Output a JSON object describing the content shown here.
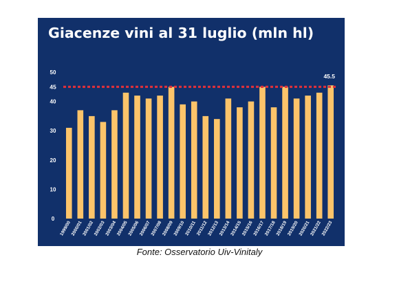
{
  "chart_data": {
    "type": "bar",
    "title": "Giacenze vini al 31 luglio (mln hl)",
    "categories": [
      "1999/00",
      "2000/01",
      "2001/02",
      "2002/03",
      "2003/04",
      "2004/05",
      "2005/06",
      "2006/07",
      "2007/08",
      "2008/09",
      "2009/10",
      "2010/11",
      "2011/12",
      "2012/13",
      "2013/14",
      "2014/15",
      "2015/16",
      "2016/17",
      "2017/18",
      "2018/19",
      "2019/20",
      "2020/21",
      "2021/22",
      "2022/23"
    ],
    "values": [
      31,
      37,
      35,
      33,
      37,
      43,
      42,
      41,
      42,
      45,
      39,
      40,
      35,
      34,
      41,
      38,
      40,
      45,
      38,
      45,
      41,
      42,
      43,
      45.5
    ],
    "ylim": [
      0,
      50
    ],
    "yticks": [
      0,
      10,
      20,
      30,
      40,
      50
    ],
    "reference_line": {
      "value": 45,
      "label": "45"
    },
    "value_labels": {
      "2022/23": "45.5"
    },
    "xlabel": "",
    "ylabel": "",
    "grid": false,
    "colors": {
      "bar": "#fcc46a",
      "reference_line": "#e0303a",
      "background": "#11306a",
      "text": "#ffffff"
    }
  },
  "caption": "Fonte: Osservatorio Uiv-Vinitaly"
}
